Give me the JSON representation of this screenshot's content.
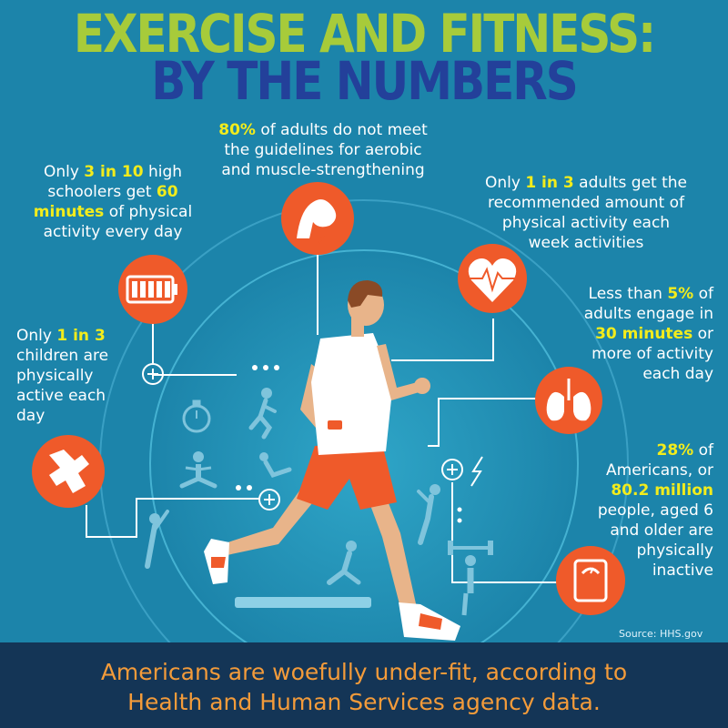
{
  "header": {
    "title_line1": "EXERCISE AND FITNESS:",
    "title_line2": "BY THE NUMBERS"
  },
  "stats": {
    "adults_guidelines": {
      "highlight": "80%",
      "text_a": " of adults do not meet",
      "text_b": "the guidelines for aerobic",
      "text_c": "and muscle-strengthening"
    },
    "high_schoolers": {
      "pre": "Only ",
      "highlight1": "3 in 10",
      "mid1": " high",
      "mid2": "schoolers get ",
      "highlight2": "60",
      "highlight3": "minutes",
      "mid3": " of physical",
      "end": "activity every day"
    },
    "adults_recommended": {
      "pre": "Only ",
      "highlight": "1 in 3",
      "text_a": " adults get the",
      "text_b": "recommended amount of",
      "text_c": "physical activity each",
      "text_d": "week activities"
    },
    "adults_30min": {
      "pre": "Less than ",
      "highlight1": "5%",
      "text_a": " of",
      "text_b": "adults engage in",
      "highlight2": "30 minutes",
      "text_c": " or",
      "text_d": "more of activity",
      "text_e": "each day"
    },
    "children": {
      "pre": "Only ",
      "highlight": "1 in 3",
      "text_a": "children are",
      "text_b": "physically",
      "text_c": "active each",
      "text_d": "day"
    },
    "inactive": {
      "highlight1": "28%",
      "text_a": " of",
      "text_b": "Americans, or",
      "highlight2": "80.2 million",
      "text_c": "people, aged 6",
      "text_d": "and older are",
      "text_e": "physically",
      "text_f": "inactive"
    }
  },
  "icons": [
    "flexed-arm-icon",
    "battery-icon",
    "heart-rate-icon",
    "lungs-icon",
    "joint-icon",
    "scale-icon",
    "stopwatch-icon",
    "runner-figure-icon",
    "yoga-figure-icon",
    "situp-figure-icon",
    "stretch-figure-icon",
    "weightlifter-figure-icon",
    "lunge-figure-icon",
    "lightning-icon"
  ],
  "colors": {
    "background": "#1c84aa",
    "title_green": "#a7cb3a",
    "title_blue": "#23409a",
    "highlight_yellow": "#f2ec1c",
    "icon_orange": "#ef5a2a",
    "footer": "#143556",
    "footer_text": "#f39b3a"
  },
  "source": "Source: HHS.gov",
  "footer": {
    "line1": "Americans are woefully under-fit, according to",
    "line2": "Health and Human Services agency data."
  }
}
